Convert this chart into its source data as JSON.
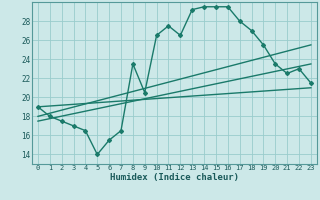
{
  "title": "",
  "xlabel": "Humidex (Indice chaleur)",
  "background_color": "#cce8e8",
  "grid_color": "#99cccc",
  "line_color": "#1a7a6a",
  "xlim": [
    -0.5,
    23.5
  ],
  "ylim": [
    13.0,
    30.0
  ],
  "xticks": [
    0,
    1,
    2,
    3,
    4,
    5,
    6,
    7,
    8,
    9,
    10,
    11,
    12,
    13,
    14,
    15,
    16,
    17,
    18,
    19,
    20,
    21,
    22,
    23
  ],
  "yticks": [
    14,
    16,
    18,
    20,
    22,
    24,
    26,
    28
  ],
  "line1_x": [
    0,
    1,
    2,
    3,
    4,
    5,
    6,
    7,
    8,
    9,
    10,
    11,
    12,
    13,
    14,
    15,
    16,
    17,
    18,
    19,
    20,
    21,
    22,
    23
  ],
  "line1_y": [
    19.0,
    18.0,
    17.5,
    17.0,
    16.5,
    14.0,
    15.5,
    16.5,
    23.5,
    20.5,
    26.5,
    27.5,
    26.5,
    29.2,
    29.5,
    29.5,
    29.5,
    28.0,
    27.0,
    25.5,
    23.5,
    22.5,
    23.0,
    21.5
  ],
  "line2_x": [
    0,
    23
  ],
  "line2_y": [
    19.0,
    21.0
  ],
  "line3_x": [
    0,
    23
  ],
  "line3_y": [
    17.5,
    23.5
  ],
  "line4_x": [
    0,
    23
  ],
  "line4_y": [
    18.0,
    25.5
  ]
}
